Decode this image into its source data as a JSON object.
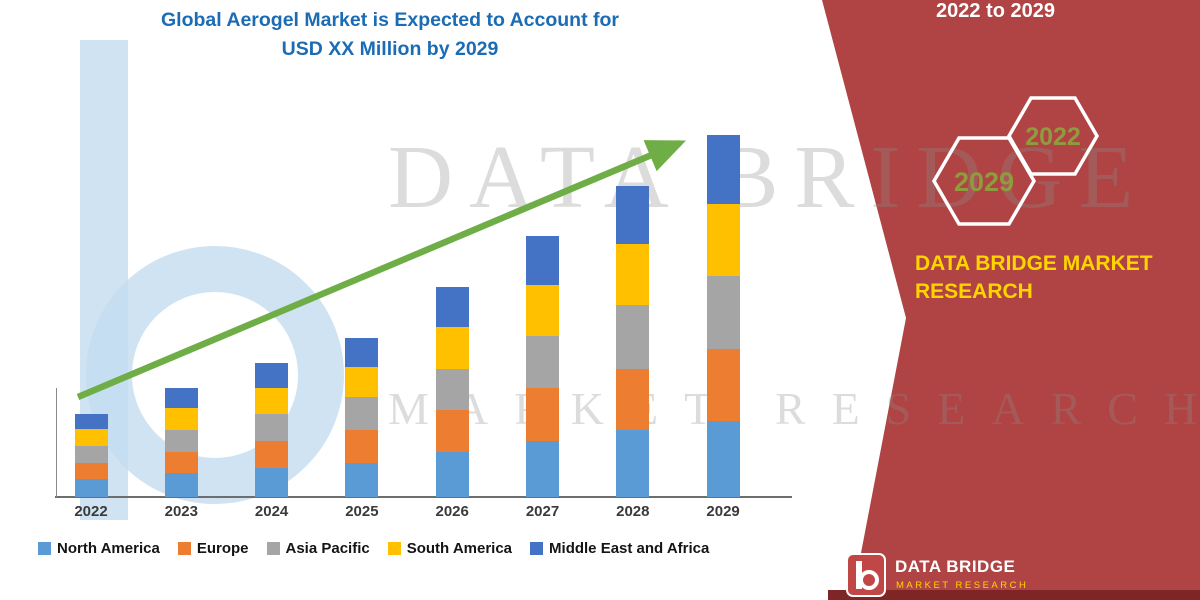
{
  "title": {
    "line1": "Global Aerogel Market is Expected to Account for",
    "line2": "USD XX Million by 2029"
  },
  "side_panel": {
    "range_text": "2022 to 2029",
    "hexagons": [
      {
        "label": "2029"
      },
      {
        "label": "2022"
      }
    ],
    "brand_line1": "DATA BRIDGE MARKET",
    "brand_line2": "RESEARCH",
    "panel_color": "#B04343",
    "accent_yellow": "#FFD500",
    "hex_text_color": "#8F9C3E"
  },
  "watermark": {
    "line1": "DATA BRIDGE",
    "line2": "MARKET RESEARCH"
  },
  "footer_logo": {
    "name": "DATA BRIDGE",
    "sub": "MARKET RESEARCH"
  },
  "chart_data": {
    "type": "bar",
    "stacked": true,
    "title": "Global Aerogel Market is Expected to Account for USD XX Million by 2029",
    "xlabel": "",
    "ylabel": "",
    "value_axis_labels_visible": false,
    "legend_position": "bottom",
    "trend_arrow": true,
    "trend_arrow_color": "#6FAD47",
    "categories": [
      "2022",
      "2023",
      "2024",
      "2025",
      "2026",
      "2027",
      "2028",
      "2029"
    ],
    "series": [
      {
        "name": "North America",
        "color": "#5B9BD5",
        "values": [
          5.0,
          6.5,
          8.0,
          9.5,
          12.5,
          15.5,
          18.5,
          21.0
        ]
      },
      {
        "name": "Europe",
        "color": "#ED7D31",
        "values": [
          4.5,
          6.0,
          7.5,
          9.0,
          11.5,
          14.5,
          17.0,
          20.0
        ]
      },
      {
        "name": "Asia Pacific",
        "color": "#A5A5A5",
        "values": [
          4.7,
          6.0,
          7.5,
          9.0,
          11.5,
          14.5,
          17.5,
          20.0
        ]
      },
      {
        "name": "South America",
        "color": "#FFC000",
        "values": [
          4.5,
          6.0,
          7.0,
          8.5,
          11.5,
          14.0,
          17.0,
          20.0
        ]
      },
      {
        "name": "Middle East and Africa",
        "color": "#4.3",
        "values": [
          4.3,
          5.5,
          7.0,
          8.0,
          11.0,
          13.5,
          16.0,
          19.0
        ]
      }
    ],
    "totals_relative": [
      23,
      30,
      37,
      44,
      58,
      72,
      86,
      100
    ],
    "note": "Values are relative units read from bar heights; actual figures shown as USD XX Million"
  }
}
